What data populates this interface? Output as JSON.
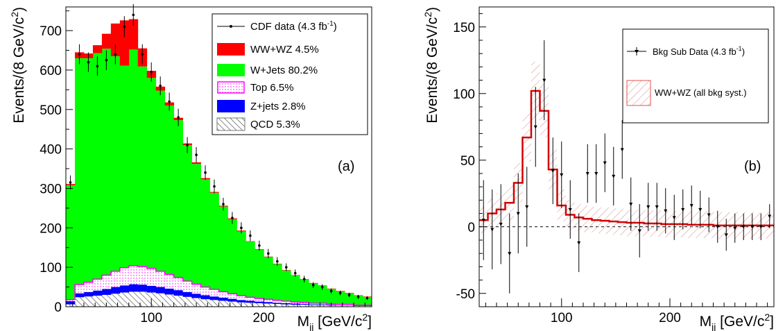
{
  "colors": {
    "ww_wz": "#ff0000",
    "wjets": "#00ff00",
    "top_edge": "#ff00ff",
    "zjets": "#0000ff",
    "qcd": "#555555",
    "fit": "#d40000"
  },
  "chart_data": [
    {
      "type": "bar",
      "stacked": true,
      "panel_label": "(a)",
      "xlabel": "M",
      "xlabel_sub": "jj",
      "xlabel_unit": "[GeV/c",
      "xlabel_sup": "2",
      "xlabel_end": "]",
      "ylabel": "Events/(8 GeV/c",
      "ylabel_sup": "2",
      "ylabel_end": ")",
      "xlim": [
        24,
        296
      ],
      "ylim": [
        0,
        760
      ],
      "xticks": [
        100,
        200
      ],
      "yticks": [
        0,
        100,
        200,
        300,
        400,
        500,
        600,
        700
      ],
      "bin_edges": [
        24,
        32,
        40,
        48,
        56,
        64,
        72,
        80,
        88,
        96,
        104,
        112,
        120,
        128,
        136,
        144,
        152,
        160,
        168,
        176,
        184,
        192,
        200,
        208,
        216,
        224,
        232,
        240,
        248,
        256,
        264,
        272,
        280,
        288,
        296
      ],
      "series": [
        {
          "name": "QCD 5.3%",
          "values": [
            6,
            24,
            26,
            28,
            30,
            33,
            36,
            38,
            38,
            36,
            34,
            31,
            28,
            25,
            22,
            19,
            17,
            15,
            13,
            11,
            10,
            9,
            8,
            7,
            6,
            5,
            5,
            4,
            4,
            3,
            3,
            3,
            2,
            2
          ]
        },
        {
          "name": "Z+jets 2.8%",
          "values": [
            8,
            10,
            11,
            13,
            15,
            17,
            18,
            19,
            18,
            17,
            16,
            15,
            14,
            12,
            11,
            10,
            9,
            8,
            7,
            6,
            5,
            4,
            4,
            3,
            3,
            3,
            2,
            2,
            2,
            2,
            1,
            1,
            1,
            1
          ]
        },
        {
          "name": "Top 6.5%",
          "values": [
            4,
            22,
            25,
            29,
            35,
            40,
            45,
            47,
            46,
            44,
            40,
            36,
            32,
            28,
            24,
            21,
            18,
            15,
            13,
            11,
            9,
            8,
            7,
            6,
            5,
            4,
            4,
            3,
            3,
            2,
            2,
            2,
            1,
            1
          ]
        },
        {
          "name": "W+Jets 80.2%",
          "values": [
            290,
            574,
            568,
            573,
            574,
            545,
            512,
            548,
            507,
            483,
            458,
            428,
            399,
            345,
            305,
            273,
            245,
            216,
            189,
            163,
            141,
            124,
            107,
            92,
            78,
            67,
            58,
            50,
            44,
            38,
            33,
            28,
            24,
            21
          ]
        },
        {
          "name": "WW+WZ 4.5%",
          "values": [
            3,
            15,
            12,
            20,
            38,
            83,
            115,
            77,
            46,
            18,
            10,
            8,
            6,
            4,
            4,
            3,
            2,
            2,
            2,
            2,
            1,
            1,
            1,
            1,
            1,
            1,
            1,
            1,
            1,
            1,
            1,
            1,
            1,
            1
          ]
        }
      ],
      "data": {
        "name": "CDF data (4.3 fb",
        "name_sup": "-1",
        "name_end": ")",
        "x": [
          28,
          36,
          44,
          52,
          60,
          68,
          76,
          84,
          92,
          100,
          108,
          116,
          124,
          132,
          140,
          148,
          156,
          164,
          172,
          180,
          188,
          196,
          204,
          212,
          220,
          228,
          236,
          244,
          252,
          260,
          268,
          276,
          284,
          292
        ],
        "y": [
          315,
          640,
          620,
          610,
          625,
          640,
          710,
          740,
          640,
          595,
          560,
          520,
          480,
          410,
          385,
          340,
          305,
          260,
          225,
          200,
          180,
          155,
          135,
          115,
          100,
          85,
          70,
          55,
          50,
          40,
          35,
          30,
          25,
          22
        ]
      },
      "legend_placement": "top-right"
    },
    {
      "type": "line",
      "panel_label": "(b)",
      "xlabel": "M",
      "xlabel_sub": "jj",
      "xlabel_unit": "[GeV/c",
      "xlabel_sup": "2",
      "xlabel_end": "]",
      "ylabel": "Events/(8 GeV/c",
      "ylabel_sup": "2",
      "ylabel_end": ")",
      "xlim": [
        24,
        296
      ],
      "ylim": [
        -60,
        165
      ],
      "xticks": [
        100,
        200
      ],
      "yticks": [
        -50,
        0,
        50,
        100,
        150
      ],
      "bin_edges": [
        24,
        32,
        40,
        48,
        56,
        64,
        72,
        80,
        88,
        96,
        104,
        112,
        120,
        128,
        136,
        144,
        152,
        160,
        168,
        176,
        184,
        192,
        200,
        208,
        216,
        224,
        232,
        240,
        248,
        256,
        264,
        272,
        280,
        288,
        296
      ],
      "fit": {
        "name": "WW+WZ (all bkg syst.)",
        "values": [
          5,
          10,
          13,
          18,
          33,
          67,
          102,
          87,
          43,
          16,
          9,
          7,
          6,
          5,
          4.5,
          4,
          3.5,
          3,
          3,
          2.5,
          2.5,
          2,
          2,
          2,
          1.5,
          1.5,
          1.5,
          1,
          1,
          1,
          1,
          1,
          1,
          1
        ],
        "band_halfwidth": [
          10,
          11,
          12,
          13,
          15,
          18,
          22,
          20,
          15,
          12,
          11,
          10,
          10,
          10,
          10,
          10,
          10,
          10,
          10,
          10,
          10,
          10,
          10,
          10,
          10,
          10,
          10,
          10,
          10,
          10,
          10,
          10,
          10,
          10
        ]
      },
      "data": {
        "name": "Bkg Sub Data (4.3 fb",
        "name_sup": "-1",
        "name_end": ")",
        "x": [
          28,
          36,
          44,
          52,
          60,
          68,
          76,
          84,
          92,
          100,
          108,
          116,
          124,
          132,
          140,
          148,
          156,
          164,
          172,
          180,
          188,
          196,
          204,
          212,
          220,
          228,
          236,
          244,
          252,
          260,
          268,
          276,
          284,
          292
        ],
        "y": [
          5,
          -2,
          2,
          -20,
          10,
          15,
          75,
          110,
          42,
          39,
          13,
          -12,
          40,
          40,
          48,
          38,
          58,
          17,
          -3,
          15,
          15,
          12,
          7,
          13,
          16,
          13,
          9,
          0,
          -6,
          -1,
          0,
          0,
          0,
          8
        ],
        "err": [
          30,
          30,
          30,
          30,
          30,
          30,
          30,
          30,
          25,
          25,
          22,
          22,
          22,
          22,
          22,
          22,
          22,
          20,
          20,
          18,
          18,
          17,
          17,
          15,
          15,
          14,
          13,
          12,
          12,
          11,
          10,
          10,
          10,
          9
        ]
      },
      "legend_placement": "top-right"
    }
  ]
}
